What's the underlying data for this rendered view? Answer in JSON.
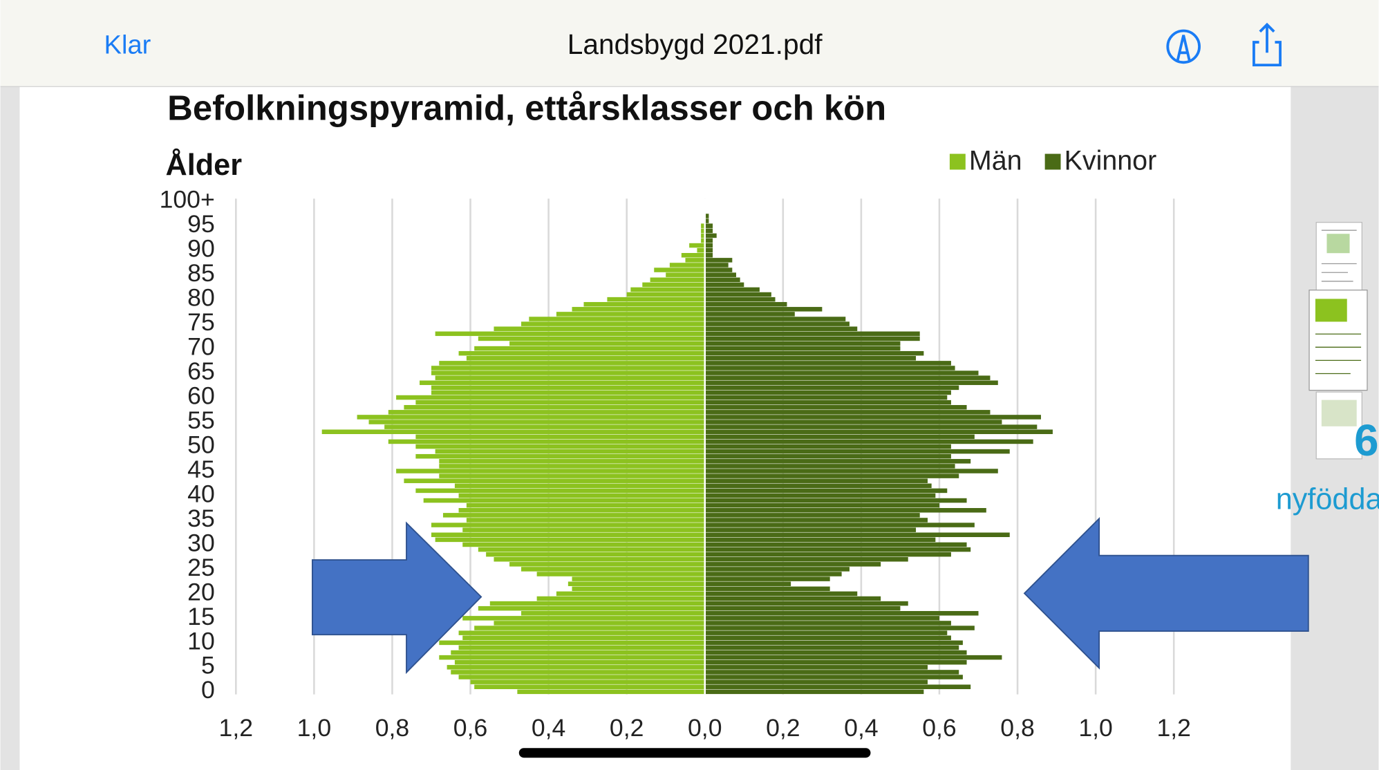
{
  "header": {
    "back": "Klar",
    "title": "Landsbygd 2021.pdf"
  },
  "sidebar": {
    "number": "6",
    "text": "nyfödda"
  },
  "chart_data": {
    "type": "pyramid",
    "title": "Befolkningspyramid, ettårsklasser och kön",
    "y_label": "Ålder",
    "categories": [
      "0",
      null,
      null,
      null,
      null,
      "5",
      null,
      null,
      null,
      null,
      "10",
      null,
      null,
      null,
      null,
      "15",
      null,
      null,
      null,
      null,
      "20",
      null,
      null,
      null,
      null,
      "25",
      null,
      null,
      null,
      null,
      "30",
      null,
      null,
      null,
      null,
      "35",
      null,
      null,
      null,
      null,
      "40",
      null,
      null,
      null,
      null,
      "45",
      null,
      null,
      null,
      null,
      "50",
      null,
      null,
      null,
      null,
      "55",
      null,
      null,
      null,
      null,
      "60",
      null,
      null,
      null,
      null,
      "65",
      null,
      null,
      null,
      null,
      "70",
      null,
      null,
      null,
      null,
      "75",
      null,
      null,
      null,
      null,
      "80",
      null,
      null,
      null,
      null,
      "85",
      null,
      null,
      null,
      null,
      "90",
      null,
      null,
      null,
      null,
      "95",
      null,
      null,
      null,
      null,
      "100+"
    ],
    "series": [
      {
        "name": "Män",
        "color": "#8cc21f",
        "side": "left",
        "values": [
          0.48,
          0.59,
          0.6,
          0.63,
          0.65,
          0.66,
          0.64,
          0.68,
          0.65,
          0.63,
          0.68,
          0.62,
          0.63,
          0.59,
          0.54,
          0.62,
          0.47,
          0.58,
          0.55,
          0.43,
          0.38,
          0.34,
          0.35,
          0.34,
          0.43,
          0.47,
          0.5,
          0.54,
          0.56,
          0.58,
          0.62,
          0.69,
          0.7,
          0.62,
          0.7,
          0.61,
          0.67,
          0.63,
          0.61,
          0.72,
          0.63,
          0.74,
          0.64,
          0.77,
          0.68,
          0.79,
          0.68,
          0.68,
          0.74,
          0.69,
          0.74,
          0.81,
          0.74,
          0.98,
          0.82,
          0.86,
          0.89,
          0.81,
          0.77,
          0.74,
          0.79,
          0.7,
          0.7,
          0.73,
          0.69,
          0.7,
          0.7,
          0.68,
          0.61,
          0.63,
          0.59,
          0.5,
          0.58,
          0.69,
          0.54,
          0.47,
          0.45,
          0.38,
          0.34,
          0.31,
          0.25,
          0.2,
          0.19,
          0.16,
          0.14,
          0.1,
          0.13,
          0.09,
          0.05,
          0.06,
          0.02,
          0.04,
          0.01,
          0.01,
          0.01,
          0.01,
          0,
          0,
          0,
          0,
          0
        ]
      },
      {
        "name": "Kvinnor",
        "color": "#4a6b16",
        "side": "right",
        "values": [
          0.56,
          0.68,
          0.57,
          0.66,
          0.65,
          0.57,
          0.67,
          0.76,
          0.67,
          0.65,
          0.66,
          0.63,
          0.62,
          0.69,
          0.63,
          0.6,
          0.7,
          0.5,
          0.52,
          0.45,
          0.39,
          0.32,
          0.22,
          0.32,
          0.35,
          0.37,
          0.45,
          0.52,
          0.63,
          0.68,
          0.67,
          0.59,
          0.78,
          0.54,
          0.69,
          0.57,
          0.55,
          0.72,
          0.6,
          0.67,
          0.59,
          0.62,
          0.58,
          0.57,
          0.65,
          0.75,
          0.64,
          0.68,
          0.63,
          0.78,
          0.63,
          0.84,
          0.69,
          0.89,
          0.85,
          0.76,
          0.86,
          0.73,
          0.67,
          0.63,
          0.62,
          0.63,
          0.65,
          0.75,
          0.73,
          0.7,
          0.64,
          0.63,
          0.54,
          0.56,
          0.5,
          0.5,
          0.55,
          0.55,
          0.39,
          0.37,
          0.36,
          0.23,
          0.3,
          0.21,
          0.18,
          0.17,
          0.14,
          0.1,
          0.09,
          0.08,
          0.07,
          0.06,
          0.07,
          0.02,
          0.02,
          0.02,
          0.02,
          0.03,
          0.02,
          0.02,
          0.01,
          0.01,
          0,
          0,
          0
        ]
      }
    ],
    "xlim": [
      -1.2,
      1.2
    ],
    "xticks": [
      {
        "value": -1.2,
        "label": "1,2"
      },
      {
        "value": -1.0,
        "label": "1,0"
      },
      {
        "value": -0.8,
        "label": "0,8"
      },
      {
        "value": -0.6,
        "label": "0,6"
      },
      {
        "value": -0.4,
        "label": "0,4"
      },
      {
        "value": -0.2,
        "label": "0,2"
      },
      {
        "value": 0,
        "label": "0,0"
      },
      {
        "value": 0.2,
        "label": "0,2"
      },
      {
        "value": 0.4,
        "label": "0,4"
      },
      {
        "value": 0.6,
        "label": "0,6"
      },
      {
        "value": 0.8,
        "label": "0,8"
      },
      {
        "value": 1.0,
        "label": "1,0"
      },
      {
        "value": 1.2,
        "label": "1,2"
      }
    ],
    "grid": true,
    "legend": "top-right"
  }
}
